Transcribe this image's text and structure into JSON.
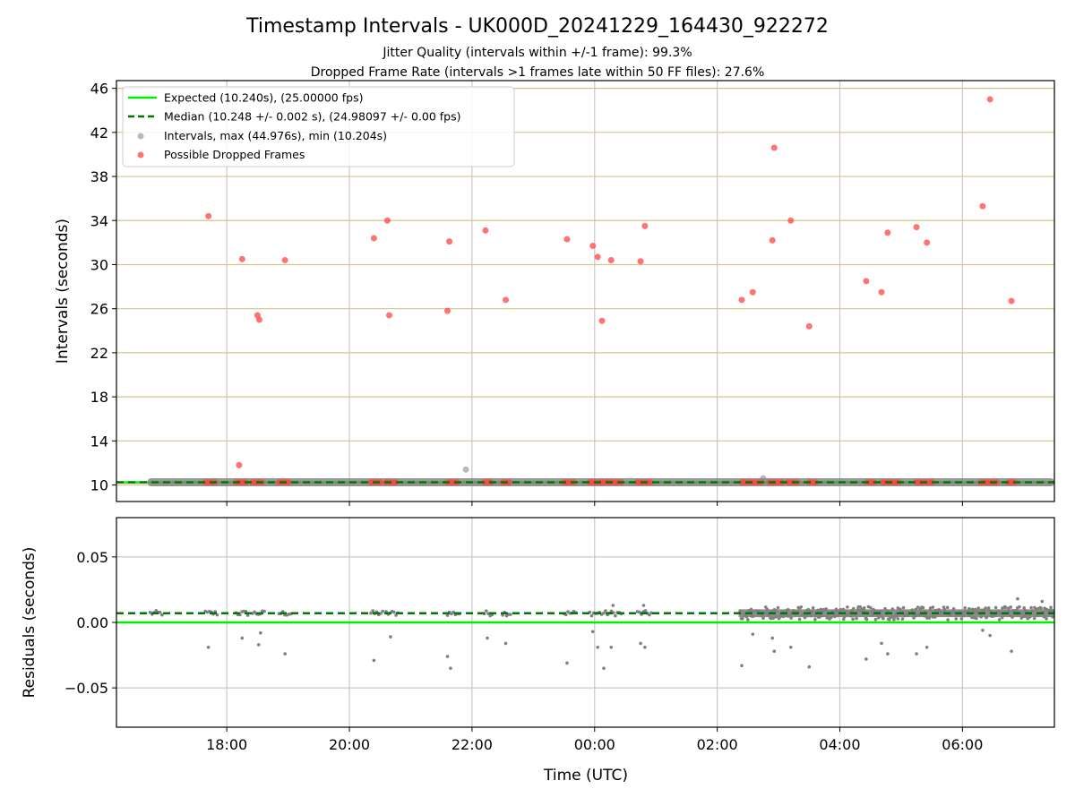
{
  "figure": {
    "title": "Timestamp Intervals - UK000D_20241229_164430_922272",
    "subtitle_lines": [
      "Jitter Quality (intervals within +/-1 frame): 99.3%",
      "Dropped Frame Rate (intervals >1 frames late within 50 FF files): 27.6%"
    ],
    "xlabel": "Time (UTC)"
  },
  "colors": {
    "expected": "#00ee00",
    "median": "#007700",
    "intervals": "#808080",
    "dropped": "#ff4444",
    "ygrid": "#d4c48a",
    "xgrid": "#c8c8c8"
  },
  "chart_data": [
    {
      "type": "scatter",
      "panel": "intervals",
      "ylabel": "Intervals (seconds)",
      "xlim_hours": [
        16.2,
        31.5
      ],
      "ylim": [
        8.5,
        46.7
      ],
      "yticks": [
        10,
        14,
        18,
        22,
        26,
        30,
        34,
        38,
        42,
        46
      ],
      "yticklabels": [
        "10",
        "14",
        "18",
        "22",
        "26",
        "30",
        "34",
        "38",
        "42",
        "46"
      ],
      "xticks_hours": [
        18,
        20,
        22,
        24,
        26,
        28,
        30
      ],
      "grid": "x and y",
      "legend_placement": "top-left",
      "legend": [
        "Expected (10.240s), (25.00000 fps)",
        "Median (10.248 +/- 0.002 s), (24.98097 +/- 0.00 fps)",
        "Intervals, max (44.976s), min (10.204s)",
        "Possible Dropped Frames"
      ],
      "expected": 10.24,
      "median": 10.248,
      "intervals_band": {
        "x_start": 16.75,
        "x_end": 31.5,
        "y": 10.25
      },
      "interval_outliers": [
        {
          "x": 21.9,
          "y": 11.4
        },
        {
          "x": 26.75,
          "y": 10.6
        }
      ],
      "dropped_frames": [
        {
          "x": 17.7,
          "y": 34.4
        },
        {
          "x": 18.2,
          "y": 11.8
        },
        {
          "x": 18.25,
          "y": 30.5
        },
        {
          "x": 18.5,
          "y": 25.4
        },
        {
          "x": 18.53,
          "y": 25.0
        },
        {
          "x": 18.95,
          "y": 30.4
        },
        {
          "x": 20.4,
          "y": 32.4
        },
        {
          "x": 20.62,
          "y": 34.0
        },
        {
          "x": 20.65,
          "y": 25.4
        },
        {
          "x": 21.6,
          "y": 25.8
        },
        {
          "x": 21.63,
          "y": 32.1
        },
        {
          "x": 22.22,
          "y": 33.1
        },
        {
          "x": 22.55,
          "y": 26.8
        },
        {
          "x": 23.55,
          "y": 32.3
        },
        {
          "x": 23.97,
          "y": 31.7
        },
        {
          "x": 24.05,
          "y": 30.7
        },
        {
          "x": 24.12,
          "y": 24.9
        },
        {
          "x": 24.27,
          "y": 30.4
        },
        {
          "x": 24.75,
          "y": 30.3
        },
        {
          "x": 24.82,
          "y": 33.5
        },
        {
          "x": 26.4,
          "y": 26.8
        },
        {
          "x": 26.58,
          "y": 27.5
        },
        {
          "x": 26.9,
          "y": 32.2
        },
        {
          "x": 26.93,
          "y": 40.6
        },
        {
          "x": 27.2,
          "y": 34.0
        },
        {
          "x": 27.5,
          "y": 24.4
        },
        {
          "x": 28.43,
          "y": 28.5
        },
        {
          "x": 28.68,
          "y": 27.5
        },
        {
          "x": 28.78,
          "y": 32.9
        },
        {
          "x": 29.25,
          "y": 33.4
        },
        {
          "x": 29.42,
          "y": 32.0
        },
        {
          "x": 30.33,
          "y": 35.3
        },
        {
          "x": 30.45,
          "y": 45.0
        },
        {
          "x": 30.8,
          "y": 26.7
        }
      ],
      "dropped_clusters_at_baseline": [
        [
          17.65,
          17.85
        ],
        [
          18.15,
          18.35
        ],
        [
          18.42,
          18.62
        ],
        [
          18.85,
          19.05
        ],
        [
          20.35,
          20.55
        ],
        [
          20.6,
          20.8
        ],
        [
          21.6,
          21.8
        ],
        [
          22.2,
          22.35
        ],
        [
          22.5,
          22.65
        ],
        [
          23.5,
          23.7
        ],
        [
          23.92,
          24.45
        ],
        [
          24.7,
          24.95
        ],
        [
          26.4,
          26.75
        ],
        [
          26.85,
          27.1
        ],
        [
          27.15,
          27.35
        ],
        [
          27.5,
          27.65
        ],
        [
          28.45,
          28.6
        ],
        [
          28.7,
          29.0
        ],
        [
          29.25,
          29.55
        ],
        [
          30.3,
          30.6
        ],
        [
          30.75,
          30.9
        ]
      ]
    },
    {
      "type": "scatter",
      "panel": "residuals",
      "ylabel": "Residuals (seconds)",
      "xlim_hours": [
        16.2,
        31.5
      ],
      "ylim": [
        -0.08,
        0.08
      ],
      "yticks": [
        -0.05,
        0.0,
        0.05
      ],
      "yticklabels": [
        "−0.05",
        "0.00",
        "0.05"
      ],
      "xticks_hours": [
        18,
        20,
        22,
        24,
        26,
        28,
        30
      ],
      "xticklabels": [
        "18:00",
        "20:00",
        "22:00",
        "00:00",
        "02:00",
        "04:00",
        "06:00"
      ],
      "grid": "x and y",
      "expected": 0.0,
      "median": 0.007,
      "dense_band": {
        "x_start": 26.35,
        "x_end": 31.5,
        "center": 0.007,
        "spread": 0.005
      },
      "sparse_band": {
        "x_start": 16.75,
        "x_end": 26.35,
        "center": 0.007,
        "spread": 0.002
      },
      "outliers": [
        {
          "x": 17.7,
          "y": -0.019
        },
        {
          "x": 18.25,
          "y": -0.012
        },
        {
          "x": 18.52,
          "y": -0.017
        },
        {
          "x": 18.55,
          "y": -0.008
        },
        {
          "x": 18.95,
          "y": -0.024
        },
        {
          "x": 20.4,
          "y": -0.029
        },
        {
          "x": 20.67,
          "y": -0.011
        },
        {
          "x": 21.6,
          "y": -0.026
        },
        {
          "x": 21.65,
          "y": -0.035
        },
        {
          "x": 22.25,
          "y": -0.012
        },
        {
          "x": 22.55,
          "y": -0.016
        },
        {
          "x": 23.55,
          "y": -0.031
        },
        {
          "x": 23.97,
          "y": -0.007
        },
        {
          "x": 24.05,
          "y": -0.019
        },
        {
          "x": 24.15,
          "y": -0.035
        },
        {
          "x": 24.27,
          "y": -0.019
        },
        {
          "x": 24.75,
          "y": -0.016
        },
        {
          "x": 24.82,
          "y": -0.019
        },
        {
          "x": 26.4,
          "y": -0.033
        },
        {
          "x": 26.58,
          "y": -0.009
        },
        {
          "x": 26.9,
          "y": -0.012
        },
        {
          "x": 26.93,
          "y": -0.022
        },
        {
          "x": 27.2,
          "y": -0.019
        },
        {
          "x": 27.5,
          "y": -0.034
        },
        {
          "x": 28.43,
          "y": -0.028
        },
        {
          "x": 28.68,
          "y": -0.016
        },
        {
          "x": 28.78,
          "y": -0.024
        },
        {
          "x": 29.25,
          "y": -0.024
        },
        {
          "x": 29.42,
          "y": -0.019
        },
        {
          "x": 30.33,
          "y": -0.006
        },
        {
          "x": 30.45,
          "y": -0.01
        },
        {
          "x": 30.8,
          "y": -0.022
        }
      ],
      "positive_outliers": [
        {
          "x": 24.3,
          "y": 0.013
        },
        {
          "x": 24.8,
          "y": 0.013
        },
        {
          "x": 30.9,
          "y": 0.018
        },
        {
          "x": 31.3,
          "y": 0.016
        }
      ]
    }
  ]
}
